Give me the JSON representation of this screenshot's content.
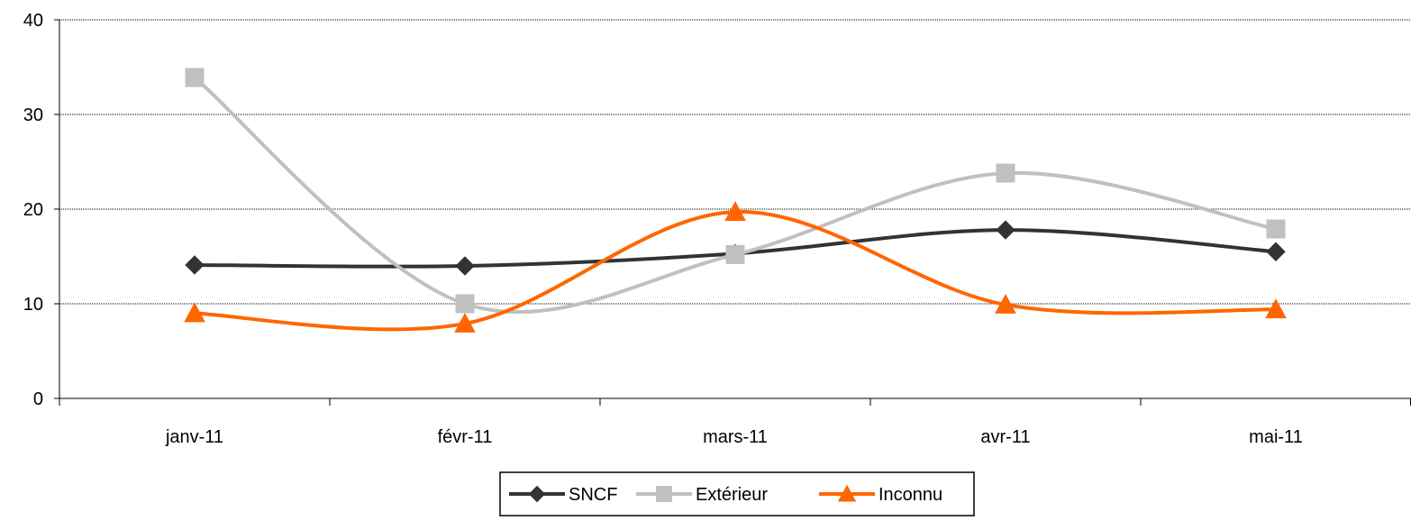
{
  "chart_data": {
    "type": "line",
    "title": "",
    "xlabel": "",
    "ylabel": "",
    "categories": [
      "janv-11",
      "févr-11",
      "mars-11",
      "avr-11",
      "mai-11"
    ],
    "ylim": [
      0,
      40
    ],
    "yticks": [
      0,
      10,
      20,
      30,
      40
    ],
    "grid": true,
    "smooth": true,
    "legend_position": "bottom-center",
    "series": [
      {
        "name": "SNCF",
        "values": [
          14.1,
          14.0,
          15.3,
          17.8,
          15.5
        ],
        "color": "#333333",
        "marker": "diamond"
      },
      {
        "name": "Extérieur",
        "values": [
          33.9,
          10.0,
          15.2,
          23.8,
          17.9
        ],
        "color": "#C0C0C0",
        "marker": "square"
      },
      {
        "name": "Inconnu",
        "values": [
          9.0,
          7.9,
          19.7,
          9.9,
          9.4
        ],
        "color": "#FF6600",
        "marker": "triangle"
      }
    ]
  }
}
